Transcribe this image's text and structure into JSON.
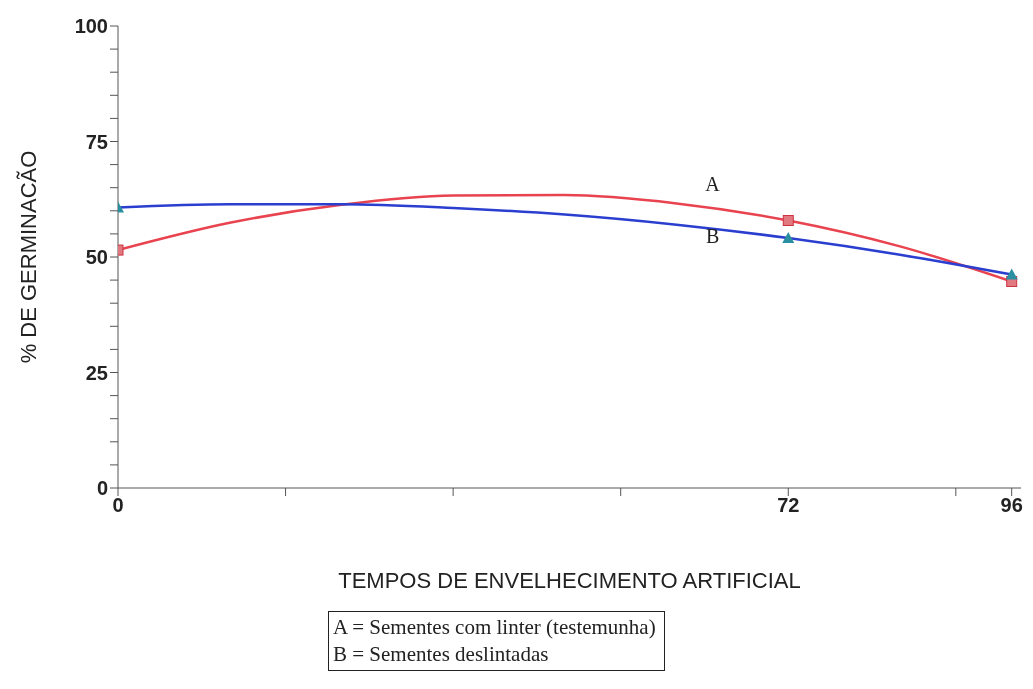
{
  "chart_data": {
    "type": "line",
    "xlabel": "TEMPOS DE ENVELHECIMENTO ARTIFICIAL",
    "ylabel": "% DE GERMINACÃO",
    "xlim": [
      0,
      97
    ],
    "xticks": [
      0,
      {
        "value": 18,
        "label": null
      },
      {
        "value": 36,
        "label": null
      },
      {
        "value": 54,
        "label": null
      },
      72,
      {
        "value": 90,
        "label": null
      },
      96
    ],
    "ylim": [
      0,
      100
    ],
    "yticks": [
      0,
      {
        "value": 5,
        "label": null
      },
      {
        "value": 10,
        "label": null
      },
      {
        "value": 15,
        "label": null
      },
      {
        "value": 20,
        "label": null
      },
      25,
      {
        "value": 30,
        "label": null
      },
      {
        "value": 35,
        "label": null
      },
      {
        "value": 40,
        "label": null
      },
      {
        "value": 45,
        "label": null
      },
      50,
      {
        "value": 55,
        "label": null
      },
      {
        "value": 60,
        "label": null
      },
      {
        "value": 65,
        "label": null
      },
      {
        "value": 70,
        "label": null
      },
      75,
      {
        "value": 80,
        "label": null
      },
      {
        "value": 85,
        "label": null
      },
      {
        "value": 90,
        "label": null
      },
      {
        "value": 95,
        "label": null
      },
      100
    ],
    "grid": false,
    "legend": false,
    "series": [
      {
        "name": "A",
        "color": "#e8434f",
        "marker": "none",
        "x": [
          0,
          12,
          24,
          36,
          48,
          60,
          72,
          84,
          96
        ],
        "values": [
          51.5,
          57.4,
          61.3,
          63.3,
          63.4,
          61.6,
          57.9,
          52.3,
          44.7
        ]
      },
      {
        "name": "B",
        "color": "#2a3fcf",
        "marker": "none",
        "x": [
          0,
          12,
          24,
          36,
          48,
          60,
          72,
          84,
          96
        ],
        "values": [
          60.7,
          61.4,
          61.4,
          60.6,
          59.2,
          57,
          54.1,
          50.5,
          46.2
        ]
      },
      {
        "type": "scatter",
        "color": "#e07a80",
        "marker": "square",
        "x": [
          0,
          72,
          96
        ],
        "values": [
          51.5,
          57.9,
          44.7
        ]
      },
      {
        "type": "scatter",
        "color": "#2a8fa0",
        "marker": "triangle",
        "x": [
          0,
          72,
          96
        ],
        "values": [
          60.7,
          54.1,
          46.2
        ]
      }
    ],
    "annotations": [
      "A = Sementes com linter (testemunha)",
      "B = Sementes deslintadas"
    ]
  }
}
